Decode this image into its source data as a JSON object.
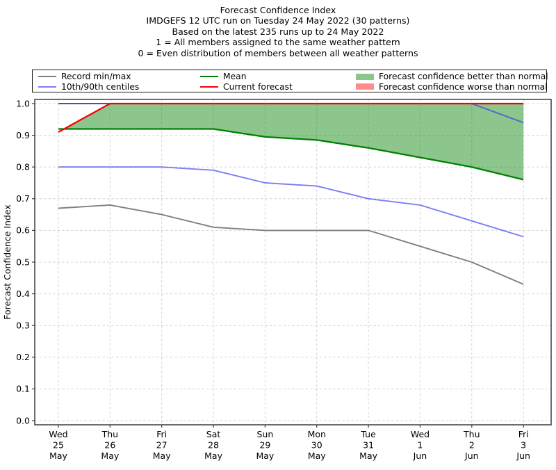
{
  "figure": {
    "title_lines": [
      "Forecast Confidence Index",
      "IMDGEFS 12 UTC run on Tuesday 24 May 2022 (30 patterns)",
      "Based on the latest 235 runs up to 24 May 2022",
      "1 = All members assigned to the same weather pattern",
      "0 = Even distribution of members between all weather patterns"
    ]
  },
  "legend": {
    "columns": [
      [
        {
          "swatch": "line",
          "color": "#7f7f7f",
          "label": "Record min/max"
        },
        {
          "swatch": "line",
          "color": "rgba(38,38,240,0.60)",
          "label": "10th/90th centiles"
        }
      ],
      [
        {
          "swatch": "line",
          "color": "#008000",
          "label": "Mean"
        },
        {
          "swatch": "line",
          "color": "#fb0000",
          "label": "Current forecast"
        }
      ],
      [
        {
          "swatch": "patch",
          "color": "rgba(0,128,0,0.45)",
          "label": "Forecast confidence better than normal"
        },
        {
          "swatch": "patch",
          "color": "rgba(255,0,0,0.45)",
          "label": "Forecast confidence worse than normal"
        }
      ]
    ]
  },
  "chart_data": {
    "type": "line",
    "title": "Forecast Confidence Index",
    "ylabel": "Forecast Confidence Index",
    "ylim": [
      0.0,
      1.0
    ],
    "ytick_step": 0.1,
    "grid": true,
    "legend_position": "top",
    "x_categories": [
      [
        "Wed",
        "25",
        "May"
      ],
      [
        "Thu",
        "26",
        "May"
      ],
      [
        "Fri",
        "27",
        "May"
      ],
      [
        "Sat",
        "28",
        "May"
      ],
      [
        "Sun",
        "29",
        "May"
      ],
      [
        "Mon",
        "30",
        "May"
      ],
      [
        "Tue",
        "31",
        "May"
      ],
      [
        "Wed",
        "1",
        "Jun"
      ],
      [
        "Thu",
        "2",
        "Jun"
      ],
      [
        "Fri",
        "3",
        "Jun"
      ]
    ],
    "series": [
      {
        "name": "Record max",
        "color": "#7f7f7f",
        "width": 1.9,
        "values": [
          1.0,
          1.0,
          1.0,
          1.0,
          1.0,
          1.0,
          1.0,
          1.0,
          1.0,
          1.0
        ]
      },
      {
        "name": "Record min",
        "color": "#7f7f7f",
        "width": 1.9,
        "values": [
          0.67,
          0.68,
          0.65,
          0.61,
          0.6,
          0.6,
          0.6,
          0.55,
          0.5,
          0.43
        ]
      },
      {
        "name": "90th centile",
        "color": "rgba(38,38,240,0.60)",
        "width": 1.9,
        "values": [
          1.0,
          1.0,
          1.0,
          1.0,
          1.0,
          1.0,
          1.0,
          1.0,
          1.0,
          0.94
        ]
      },
      {
        "name": "10th centile",
        "color": "rgba(38,38,240,0.60)",
        "width": 1.9,
        "values": [
          0.8,
          0.8,
          0.8,
          0.79,
          0.75,
          0.74,
          0.7,
          0.68,
          0.63,
          0.58
        ]
      },
      {
        "name": "Mean",
        "color": "#008000",
        "width": 2.3,
        "values": [
          0.92,
          0.92,
          0.92,
          0.92,
          0.895,
          0.885,
          0.86,
          0.83,
          0.8,
          0.76
        ]
      },
      {
        "name": "Current forecast",
        "color": "#fb0000",
        "width": 2.3,
        "values": [
          0.91,
          1.0,
          1.0,
          1.0,
          1.0,
          1.0,
          1.0,
          1.0,
          1.0,
          1.0
        ]
      }
    ],
    "fill_between": {
      "upper": "Current forecast",
      "lower": "Mean",
      "better_color": "rgba(0,128,0,0.45)",
      "worse_color": "rgba(255,0,0,0.45)",
      "note": "green fill drawn where current forecast > mean"
    }
  }
}
